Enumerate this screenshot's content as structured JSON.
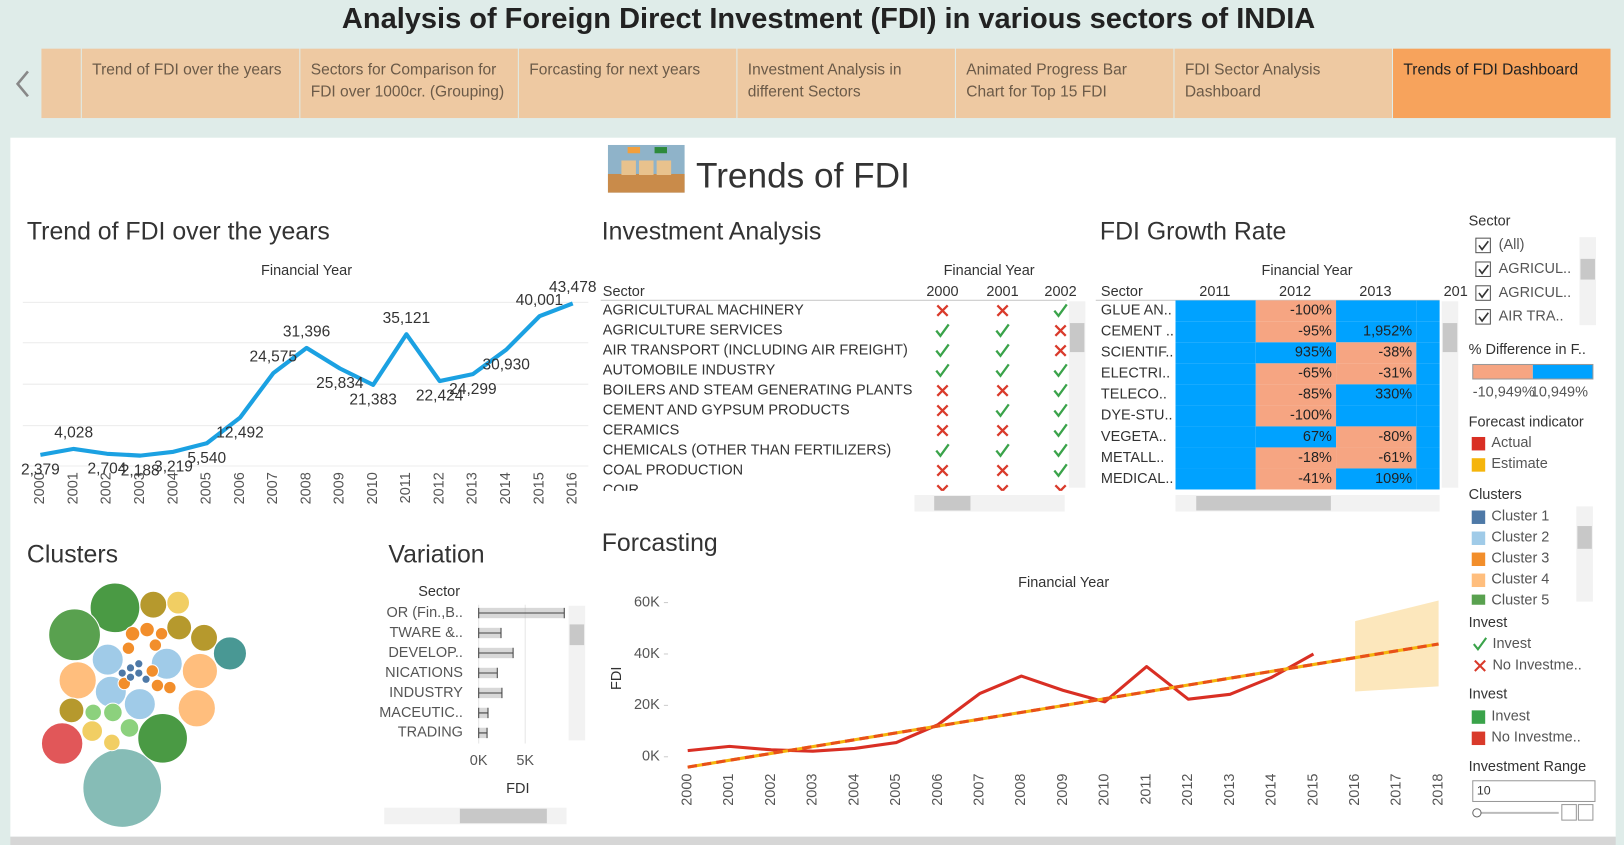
{
  "header": {
    "title": "Analysis of Foreign Direct Investment (FDI) in various sectors of INDIA"
  },
  "tabs": [
    "Trend of FDI over the years",
    "Sectors for Comparison for FDI over 1000cr. (Grouping)",
    "Forcasting for next years",
    "Investment Analysis in different Sectors",
    "Animated Progress  Bar Chart for Top 15 FDI",
    "FDI Sector Analysis Dashboard",
    "Trends of FDI  Dashboard"
  ],
  "dashboard": {
    "title": "Trends of FDI"
  },
  "chart_data": [
    {
      "type": "line",
      "title": "Trend of FDI over the years",
      "x_label": "Financial Year",
      "x": [
        2000,
        2001,
        2002,
        2003,
        2004,
        2005,
        2006,
        2007,
        2008,
        2009,
        2010,
        2011,
        2012,
        2013,
        2014,
        2015,
        2016
      ],
      "series": [
        {
          "color": "#1ba1e2",
          "values": [
            2379,
            4028,
            2704,
            2188,
            3219,
            5540,
            12492,
            24575,
            31396,
            25834,
            21383,
            35121,
            22424,
            24299,
            30930,
            40001,
            43478
          ],
          "value_labels": [
            "2,379",
            "4,028",
            "2,704",
            "2,188",
            "3,219",
            "5,540",
            "12,492",
            "24,575",
            "31,396",
            "25,834",
            "21,383",
            "35,121",
            "22,424",
            "24,299",
            "30,930",
            "40,001",
            "43,478"
          ]
        }
      ],
      "ylim": [
        0,
        47000
      ]
    },
    {
      "type": "line",
      "title": "Forcasting",
      "x_label": "Financial Year",
      "y_label": "FDI",
      "x": [
        2000,
        2001,
        2002,
        2003,
        2004,
        2005,
        2006,
        2007,
        2008,
        2009,
        2010,
        2011,
        2012,
        2013,
        2014,
        2015,
        2016,
        2017,
        2018
      ],
      "series": [
        {
          "color": "#d92f24",
          "values": [
            2379,
            4028,
            2704,
            2188,
            3219,
            5540,
            12492,
            24575,
            31396,
            25834,
            21383,
            35121,
            22424,
            24299,
            30930,
            40001,
            null,
            null,
            null
          ]
        }
      ],
      "trend": {
        "color": "#e8501a",
        "x": [
          2000,
          2018
        ],
        "values": [
          -4000,
          43900
        ]
      },
      "band": {
        "color": "#fbe3b0",
        "x": [
          2016,
          2018
        ],
        "low": [
          25400,
          27400
        ],
        "high": [
          52800,
          60800
        ]
      },
      "ylim": [
        -4500,
        64800
      ],
      "yticks": [
        {
          "value": 0,
          "label": "0K"
        },
        {
          "value": 20000,
          "label": "20K"
        },
        {
          "value": 40000,
          "label": "40K"
        },
        {
          "value": 60000,
          "label": "60K"
        }
      ]
    },
    {
      "type": "box",
      "title": "Variation",
      "y_label": "Sector",
      "x_label": "FDI",
      "categories": [
        "OR (Fin.,B..",
        "TWARE &..",
        "DEVELOP..",
        "NICATIONS",
        "INDUSTRY",
        "MACEUTIC..",
        "TRADING"
      ],
      "values": [
        9200,
        2400,
        3700,
        2000,
        2500,
        1000,
        900
      ],
      "xlim": [
        -800,
        10000
      ],
      "xticks": [
        {
          "value": 0,
          "label": "0K"
        },
        {
          "value": 5000,
          "label": "5K"
        }
      ]
    }
  ],
  "investment_analysis": {
    "title": "Investment Analysis",
    "column_header": "Financial Year",
    "row_header": "Sector",
    "columns": [
      "2000",
      "2001",
      "2002"
    ],
    "rows": [
      {
        "sector": "AGRICULTURAL MACHINERY",
        "invest": [
          false,
          false,
          true
        ]
      },
      {
        "sector": "AGRICULTURE SERVICES",
        "invest": [
          true,
          true,
          false
        ]
      },
      {
        "sector": "AIR TRANSPORT (INCLUDING AIR FREIGHT)",
        "invest": [
          true,
          true,
          false
        ]
      },
      {
        "sector": "AUTOMOBILE INDUSTRY",
        "invest": [
          true,
          true,
          true
        ]
      },
      {
        "sector": "BOILERS AND STEAM GENERATING PLANTS",
        "invest": [
          false,
          false,
          true
        ]
      },
      {
        "sector": "CEMENT AND GYPSUM PRODUCTS",
        "invest": [
          false,
          true,
          true
        ]
      },
      {
        "sector": "CERAMICS",
        "invest": [
          false,
          false,
          true
        ]
      },
      {
        "sector": "CHEMICALS (OTHER THAN FERTILIZERS)",
        "invest": [
          true,
          true,
          true
        ]
      },
      {
        "sector": "COAL PRODUCTION",
        "invest": [
          false,
          false,
          true
        ]
      },
      {
        "sector": "COIR",
        "invest": [
          false,
          false,
          false
        ]
      }
    ]
  },
  "growth_rate": {
    "title": "FDI Growth Rate",
    "column_header": "Financial Year",
    "row_header": "Sector",
    "columns": [
      "2011",
      "2012",
      "2013",
      "201"
    ],
    "rows": [
      {
        "sector": "GLUE AN..",
        "cells": [
          null,
          "-100%",
          null,
          null
        ]
      },
      {
        "sector": "CEMENT ..",
        "cells": [
          null,
          "-95%",
          "1,952%",
          null
        ]
      },
      {
        "sector": "SCIENTIF..",
        "cells": [
          null,
          "935%",
          "-38%",
          null
        ]
      },
      {
        "sector": "ELECTRI..",
        "cells": [
          null,
          "-65%",
          "-31%",
          null
        ]
      },
      {
        "sector": "TELECO..",
        "cells": [
          null,
          "-85%",
          "330%",
          null
        ]
      },
      {
        "sector": "DYE-STU..",
        "cells": [
          null,
          "-100%",
          null,
          null
        ]
      },
      {
        "sector": "VEGETA..",
        "cells": [
          null,
          "67%",
          "-80%",
          null
        ]
      },
      {
        "sector": "METALL..",
        "cells": [
          null,
          "-18%",
          "-61%",
          null
        ]
      },
      {
        "sector": "MEDICAL..",
        "cells": [
          null,
          "-41%",
          "109%",
          null
        ]
      }
    ]
  },
  "clusters": {
    "title": "Clusters"
  },
  "filters": {
    "sector": {
      "title": "Sector",
      "items": [
        "(All)",
        "AGRICUL..",
        "AGRICUL..",
        "AIR TRA.."
      ]
    },
    "difference": {
      "title": "% Difference in F..",
      "min_label": "-10,949%",
      "max_label": "10,949%"
    },
    "forecast_indicator": {
      "title": "Forecast indicator",
      "items": [
        {
          "label": "Actual",
          "color": "#d92f24"
        },
        {
          "label": "Estimate",
          "color": "#f5b50c"
        }
      ]
    },
    "clusters": {
      "title": "Clusters",
      "items": [
        {
          "label": "Cluster 1",
          "color": "#4e79a7"
        },
        {
          "label": "Cluster 2",
          "color": "#a0cbe8"
        },
        {
          "label": "Cluster 3",
          "color": "#f28e2b"
        },
        {
          "label": "Cluster 4",
          "color": "#ffbe7d"
        },
        {
          "label": "Cluster 5",
          "color": "#59a14f"
        }
      ]
    },
    "invest_shape": {
      "title": "Invest",
      "items": [
        {
          "label": "Invest",
          "shape": "check"
        },
        {
          "label": "No Investme..",
          "shape": "cross"
        }
      ]
    },
    "invest_color": {
      "title": "Invest",
      "items": [
        {
          "label": "Invest",
          "color": "#3aa34a"
        },
        {
          "label": "No Investme..",
          "color": "#d93a2b"
        }
      ]
    },
    "range": {
      "title": "Investment Range",
      "value": "10"
    }
  }
}
